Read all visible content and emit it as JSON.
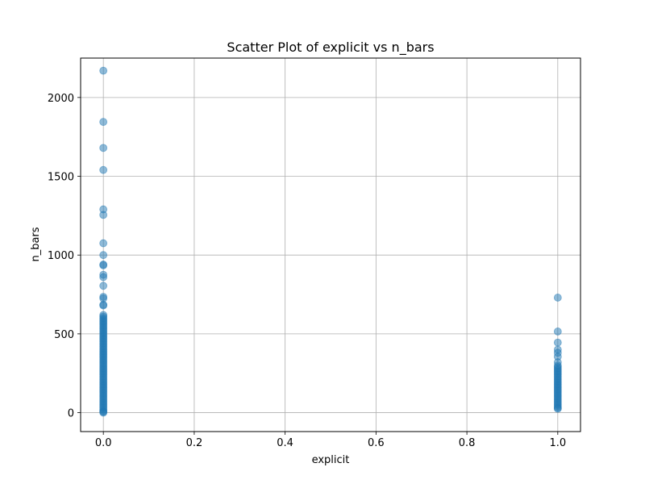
{
  "chart_data": {
    "type": "scatter",
    "title": "Scatter Plot of explicit vs n_bars",
    "xlabel": "explicit",
    "ylabel": "n_bars",
    "xlim": [
      -0.05,
      1.05
    ],
    "ylim": [
      -120,
      2250
    ],
    "xticks": [
      0.0,
      0.2,
      0.4,
      0.6,
      0.8,
      1.0
    ],
    "xtick_labels": [
      "0.0",
      "0.2",
      "0.4",
      "0.6",
      "0.8",
      "1.0"
    ],
    "yticks": [
      0,
      500,
      1000,
      1500,
      2000
    ],
    "ytick_labels": [
      "0",
      "500",
      "1000",
      "1500",
      "2000"
    ],
    "grid": true,
    "point_color": "#1f77b4",
    "point_opacity": 0.5,
    "series": [
      {
        "x": 0,
        "values": [
          2170,
          1845,
          1680,
          1540,
          1290,
          1255,
          1075,
          1000,
          940,
          935,
          875,
          860,
          805,
          735,
          725,
          685,
          680,
          620,
          610,
          600,
          590,
          580,
          570,
          560,
          550,
          540,
          530,
          520,
          510,
          500,
          490,
          480,
          470,
          460,
          450,
          440,
          430,
          420,
          410,
          400,
          390,
          380,
          370,
          360,
          350,
          340,
          330,
          320,
          310,
          300,
          290,
          280,
          270,
          260,
          250,
          240,
          230,
          220,
          210,
          200,
          190,
          180,
          170,
          160,
          150,
          140,
          130,
          120,
          110,
          100,
          90,
          80,
          70,
          60,
          50,
          40,
          30,
          20,
          10,
          5,
          0
        ]
      },
      {
        "x": 1,
        "values": [
          730,
          515,
          445,
          400,
          380,
          355,
          320,
          300,
          290,
          280,
          270,
          260,
          250,
          240,
          230,
          220,
          210,
          200,
          190,
          180,
          170,
          160,
          150,
          140,
          130,
          120,
          110,
          100,
          90,
          80,
          70,
          60,
          50,
          40,
          30,
          25
        ]
      }
    ]
  }
}
